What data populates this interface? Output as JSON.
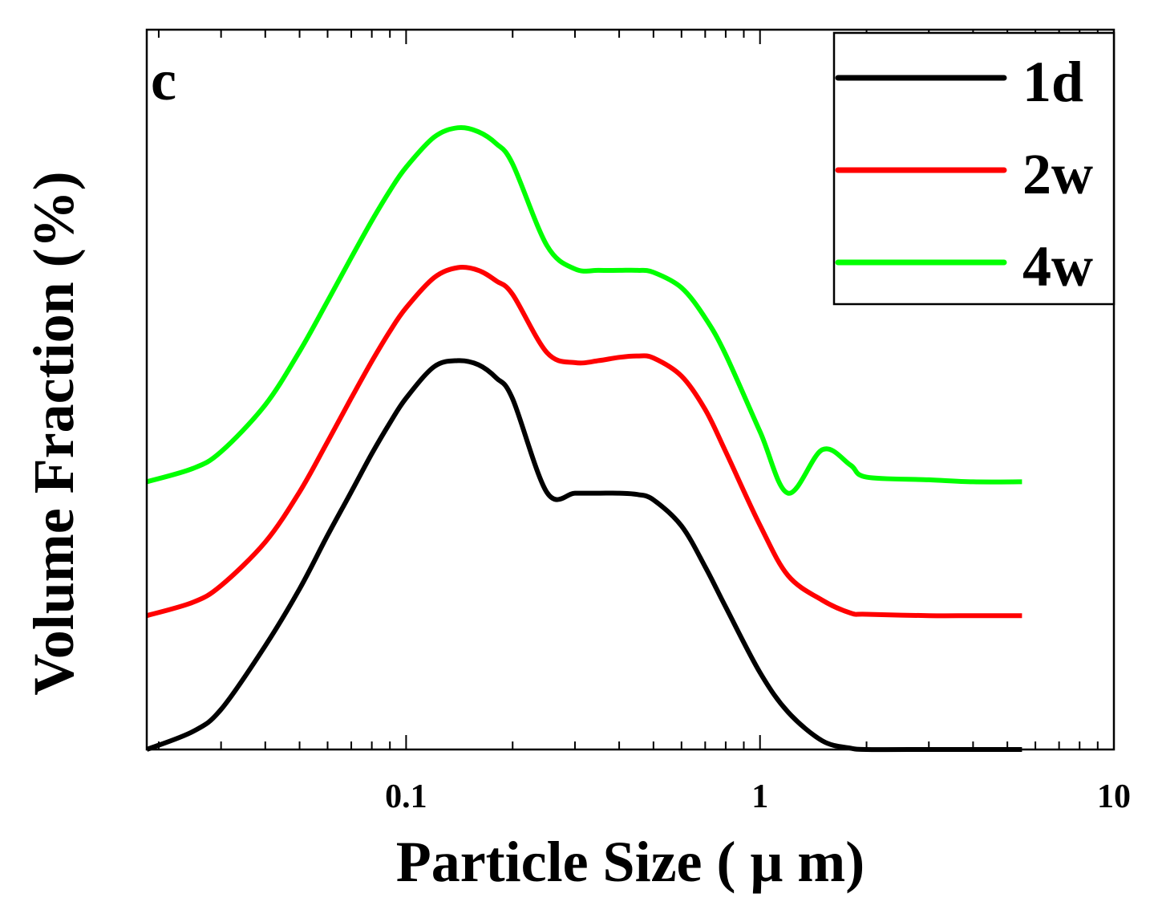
{
  "chart_data": {
    "type": "line",
    "panel_label": "c",
    "xlabel": "Particle Size ( μ m)",
    "ylabel": "Volume Fraction (%)",
    "x_scale": "log",
    "xlim": [
      0.0185,
      10
    ],
    "ylim": [
      0,
      100
    ],
    "x_ticks": [
      0.1,
      1,
      10
    ],
    "x_tick_labels": [
      "0.1",
      "1",
      "10"
    ],
    "y_ticks_shown": false,
    "grid": false,
    "legend_position": "top-right",
    "series": [
      {
        "name": "1d",
        "color": "#000000",
        "x": [
          0.0185,
          0.025,
          0.03,
          0.04,
          0.05,
          0.06,
          0.07,
          0.08,
          0.09,
          0.1,
          0.12,
          0.14,
          0.16,
          0.18,
          0.2,
          0.25,
          0.3,
          0.35,
          0.4,
          0.45,
          0.5,
          0.6,
          0.7,
          0.8,
          1.0,
          1.2,
          1.5,
          1.8,
          2.0,
          3.0,
          4.0,
          5.5
        ],
        "y": [
          0,
          2.7,
          6,
          15.5,
          24,
          32,
          38.5,
          44.2,
          48.8,
          52.5,
          57.2,
          58.1,
          57.5,
          55.5,
          52.4,
          38.4,
          38.3,
          38.3,
          38.3,
          38.1,
          37.3,
          33.4,
          27.3,
          21.3,
          11.5,
          5.6,
          1.3,
          0.2,
          0,
          0,
          0,
          0
        ]
      },
      {
        "name": "2w",
        "color": "#ff0000",
        "x": [
          0.0185,
          0.025,
          0.03,
          0.04,
          0.05,
          0.06,
          0.07,
          0.08,
          0.09,
          0.1,
          0.12,
          0.14,
          0.16,
          0.18,
          0.2,
          0.25,
          0.3,
          0.35,
          0.4,
          0.45,
          0.5,
          0.6,
          0.7,
          0.8,
          1.0,
          1.2,
          1.5,
          1.8,
          2.0,
          3.0,
          4.0,
          5.5
        ],
        "y": [
          20,
          22,
          24.5,
          31,
          38.5,
          46,
          52.5,
          58,
          62.5,
          66,
          70.5,
          72,
          71.6,
          70,
          68,
          59.3,
          57.8,
          58.1,
          58.6,
          58.8,
          58.5,
          55.8,
          50.8,
          44.5,
          33.5,
          26,
          22.3,
          20.4,
          20.2,
          20,
          20,
          20
        ]
      },
      {
        "name": "4w",
        "color": "#00ff00",
        "x": [
          0.0185,
          0.025,
          0.03,
          0.04,
          0.05,
          0.06,
          0.07,
          0.08,
          0.09,
          0.1,
          0.12,
          0.14,
          0.16,
          0.18,
          0.2,
          0.25,
          0.3,
          0.35,
          0.4,
          0.45,
          0.5,
          0.6,
          0.7,
          0.8,
          1.0,
          1.2,
          1.5,
          1.8,
          2.0,
          3.0,
          4.0,
          5.5
        ],
        "y": [
          40,
          42,
          44.5,
          51.5,
          59.5,
          67,
          73.5,
          79,
          83.5,
          87,
          91.5,
          92.9,
          92.3,
          90.5,
          87.5,
          75.3,
          71.8,
          71.6,
          71.6,
          71.6,
          71.3,
          69,
          64.5,
          59,
          47.5,
          38.3,
          44.8,
          42.5,
          40.7,
          40.3,
          40,
          40
        ]
      }
    ]
  }
}
